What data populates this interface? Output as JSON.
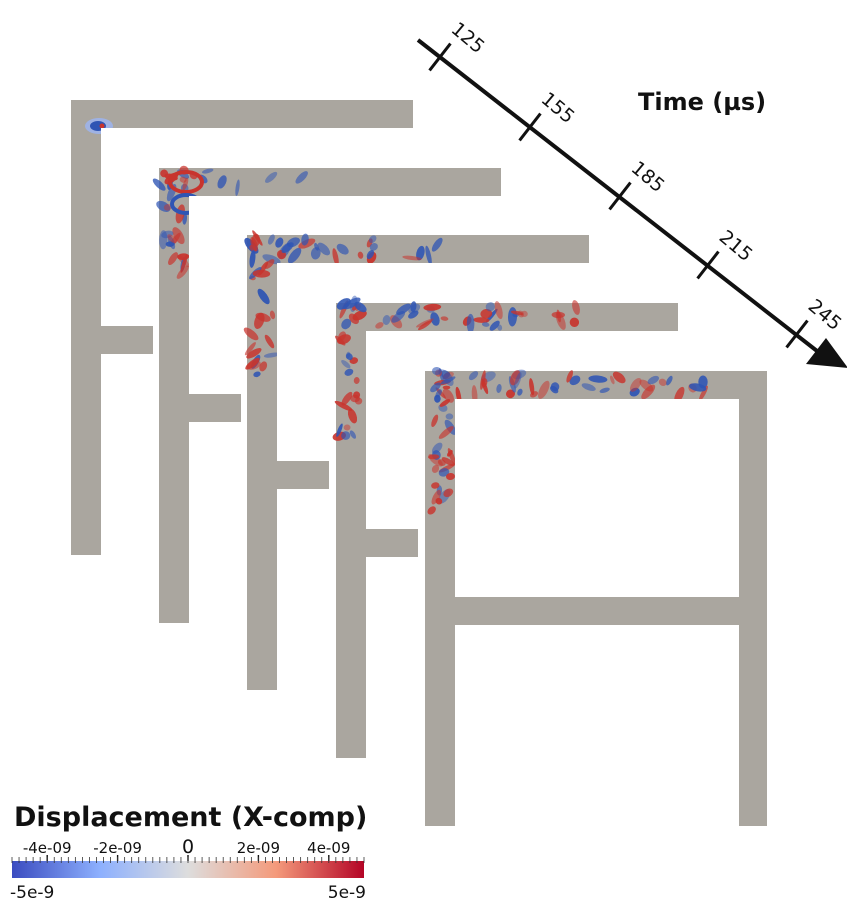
{
  "time_axis": {
    "title": "Time (µs)",
    "ticks": [
      "125",
      "155",
      "185",
      "215",
      "245"
    ]
  },
  "frames": [
    {
      "time": "125",
      "wave_extent": "source"
    },
    {
      "time": "155",
      "wave_extent": "corner"
    },
    {
      "time": "185",
      "wave_extent": "corner"
    },
    {
      "time": "215",
      "wave_extent": "corner"
    },
    {
      "time": "245",
      "wave_extent": "corner"
    }
  ],
  "colorbar": {
    "title": "Displacement (X-comp)",
    "tick_labels": [
      "-4e-09",
      "-2e-09",
      "0",
      "2e-09",
      "4e-09"
    ],
    "min_label": "-5e-9",
    "max_label": "5e-9",
    "colors": {
      "low": "#3b4cc0",
      "mid": "#dddddd",
      "high": "#b40426"
    }
  },
  "colors": {
    "structure": "#aaa69f",
    "axis": "#111111",
    "wave_blue": "#2f55b4",
    "wave_red": "#c8342d"
  }
}
